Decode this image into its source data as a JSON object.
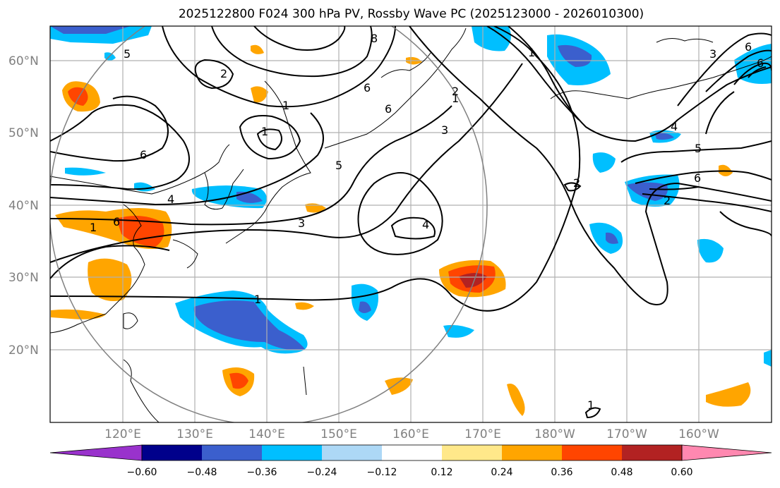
{
  "title": "2025122800 F024 300 hPa PV, Rossby Wave PC (2025123000 - 2026010300)",
  "latitude_labels": [
    "60°N",
    "50°N",
    "40°N",
    "30°N",
    "20°N"
  ],
  "longitude_labels": [
    "120°E",
    "130°E",
    "140°E",
    "150°E",
    "160°E",
    "170°E",
    "180°W",
    "170°W",
    "160°W"
  ],
  "contour_labels": [
    "5",
    "8",
    "1",
    "6",
    "2",
    "3",
    "6",
    "1",
    "6",
    "4",
    "1",
    "6",
    "4",
    "3",
    "1",
    "2",
    "6",
    "2",
    "5",
    "6",
    "3",
    "1",
    "1",
    "1",
    "2",
    "4",
    "5",
    "6"
  ],
  "colorbar": {
    "ticks": [
      "−0.60",
      "−0.48",
      "−0.36",
      "−0.24",
      "−0.12",
      "0.12",
      "0.24",
      "0.36",
      "0.48",
      "0.60"
    ],
    "colors": [
      "#9932cc",
      "#00008b",
      "#3b5fcd",
      "#00bfff",
      "#add8f6",
      "#ffffff",
      "#ffe88a",
      "#ffa500",
      "#ff4500",
      "#b22222",
      "#ff88b0"
    ]
  }
}
